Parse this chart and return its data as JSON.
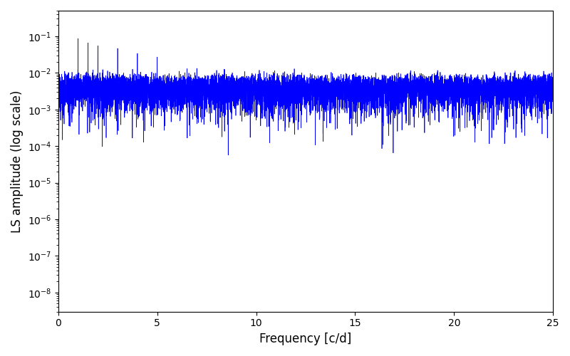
{
  "xlabel": "Frequency [c/d]",
  "ylabel": "LS amplitude (log scale)",
  "xlim": [
    0,
    25
  ],
  "ylim": [
    3e-09,
    0.5
  ],
  "line_color": "#0000ff",
  "linewidth": 0.5,
  "yscale": "log",
  "figsize": [
    8.0,
    5.0
  ],
  "dpi": 100,
  "background_color": "#ffffff",
  "n_points": 10000,
  "freq_max": 25.0,
  "seed": 42
}
